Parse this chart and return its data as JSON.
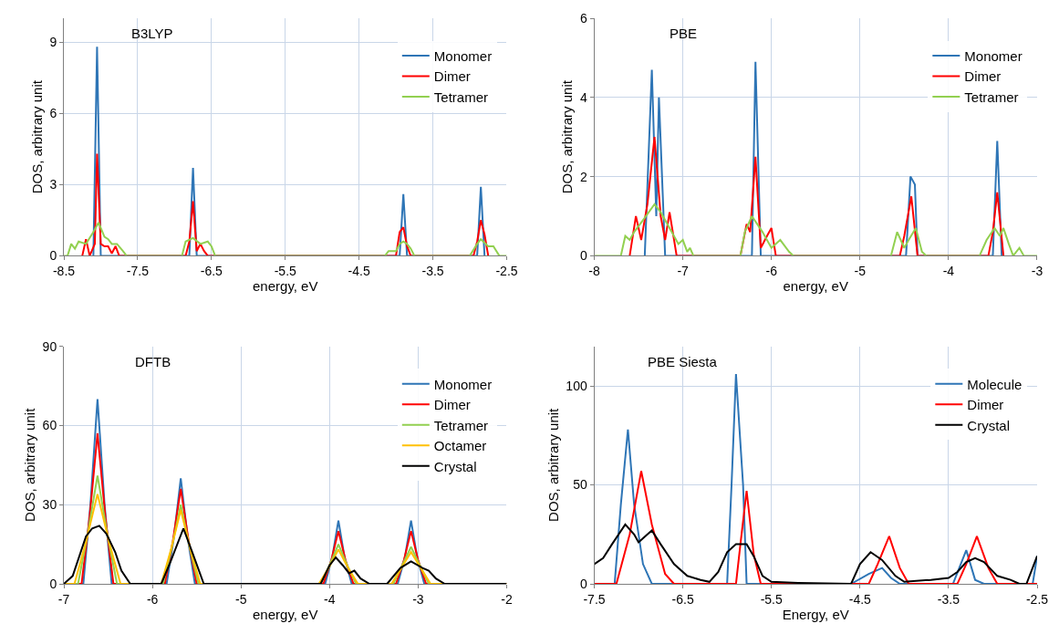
{
  "chart_data": [
    {
      "type": "line",
      "title": "B3LYP",
      "xlabel": "energy, eV",
      "ylabel": "DOS, arbitrary unit",
      "xlim": [
        -8.5,
        -2.5
      ],
      "xticks": [
        -8.5,
        -7.5,
        -6.5,
        -5.5,
        -4.5,
        -3.5,
        -2.5
      ],
      "ylim": [
        0,
        10
      ],
      "yticks": [
        0,
        3,
        6,
        9
      ],
      "grid": true,
      "legend": "top right",
      "series": [
        {
          "name": "Monomer",
          "color": "#2e75b6",
          "x": [
            -8.1,
            -8.05,
            -8.0,
            -6.8,
            -6.75,
            -6.7,
            -3.95,
            -3.9,
            -3.85,
            -2.9,
            -2.85,
            -2.8
          ],
          "values": [
            0,
            8.8,
            0,
            0,
            3.7,
            0,
            0,
            2.6,
            0,
            0,
            2.9,
            0
          ]
        },
        {
          "name": "Dimer",
          "color": "#ff0000",
          "x": [
            -8.25,
            -8.2,
            -8.15,
            -8.08,
            -8.05,
            -8.0,
            -7.95,
            -7.9,
            -7.85,
            -7.8,
            -7.75,
            -6.85,
            -6.8,
            -6.75,
            -6.7,
            -6.65,
            -6.6,
            -6.55,
            -4.0,
            -3.95,
            -3.9,
            -3.85,
            -3.8,
            -2.95,
            -2.9,
            -2.85,
            -2.8,
            -2.75
          ],
          "values": [
            0,
            0.7,
            0,
            0.5,
            4.3,
            0.5,
            0.4,
            0.4,
            0.1,
            0.4,
            0,
            0,
            0.6,
            2.3,
            0.2,
            0.5,
            0.2,
            0,
            0,
            1.0,
            1.2,
            0.4,
            0,
            0,
            0.6,
            1.5,
            0.9,
            0
          ]
        },
        {
          "name": "Tetramer",
          "color": "#92d050",
          "x": [
            -8.5,
            -8.45,
            -8.4,
            -8.35,
            -8.3,
            -8.2,
            -8.1,
            -8.03,
            -7.95,
            -7.9,
            -7.85,
            -7.78,
            -7.7,
            -7.65,
            -6.9,
            -6.85,
            -6.75,
            -6.65,
            -6.55,
            -6.5,
            -6.45,
            -4.15,
            -4.1,
            -4.0,
            -3.95,
            -3.9,
            -3.85,
            -3.8,
            -3.75,
            -3.0,
            -2.9,
            -2.85,
            -2.75,
            -2.68,
            -2.6,
            -2.5
          ],
          "values": [
            0,
            0,
            0.5,
            0.3,
            0.6,
            0.5,
            1.0,
            1.4,
            0.8,
            0.7,
            0.5,
            0.5,
            0.2,
            0,
            0,
            0.6,
            0.75,
            0.5,
            0.6,
            0.4,
            0,
            0,
            0.2,
            0.2,
            0.5,
            0.6,
            0.5,
            0.3,
            0,
            0,
            0.5,
            0.7,
            0.4,
            0.4,
            0,
            0
          ]
        }
      ]
    },
    {
      "type": "line",
      "title": "PBE",
      "xlabel": "energy, eV",
      "ylabel": "DOS, arbitrary unit",
      "xlim": [
        -8,
        -3
      ],
      "xticks": [
        -8,
        -7,
        -6,
        -5,
        -4,
        -3
      ],
      "ylim": [
        0,
        6
      ],
      "yticks": [
        0,
        2,
        4,
        6
      ],
      "grid": true,
      "legend": "top right",
      "series": [
        {
          "name": "Monomer",
          "color": "#2e75b6",
          "x": [
            -7.43,
            -7.35,
            -7.3,
            -7.27,
            -7.2,
            -6.22,
            -6.18,
            -6.12,
            -4.48,
            -4.43,
            -4.38,
            -4.35,
            -3.5,
            -3.45,
            -3.4
          ],
          "values": [
            0,
            4.7,
            1.0,
            4.0,
            0,
            0,
            4.9,
            0,
            0,
            2.0,
            1.8,
            0,
            0,
            2.9,
            0
          ]
        },
        {
          "name": "Dimer",
          "color": "#ff0000",
          "x": [
            -7.6,
            -7.53,
            -7.47,
            -7.4,
            -7.32,
            -7.25,
            -7.2,
            -7.15,
            -7.07,
            -6.35,
            -6.28,
            -6.24,
            -6.18,
            -6.12,
            -6.05,
            -6.0,
            -5.95,
            -4.55,
            -4.5,
            -4.42,
            -4.35,
            -3.55,
            -3.5,
            -3.45,
            -3.38
          ],
          "values": [
            0,
            1.0,
            0.4,
            1.3,
            3.0,
            1.0,
            0.4,
            1.1,
            0,
            0,
            0.8,
            0.6,
            2.5,
            0.2,
            0.5,
            0.7,
            0,
            0,
            0.5,
            1.5,
            0,
            0,
            0.6,
            1.6,
            0
          ]
        },
        {
          "name": "Tetramer",
          "color": "#92d050",
          "x": [
            -8,
            -7.7,
            -7.65,
            -7.6,
            -7.55,
            -7.45,
            -7.32,
            -7.25,
            -7.15,
            -7.05,
            -7.0,
            -6.95,
            -6.92,
            -6.88,
            -6.35,
            -6.3,
            -6.22,
            -6.1,
            -6.0,
            -5.9,
            -5.8,
            -5.75,
            -4.65,
            -4.58,
            -4.5,
            -4.45,
            -4.37,
            -4.3,
            -4.25,
            -3.65,
            -3.57,
            -3.48,
            -3.42,
            -3.38,
            -3.32,
            -3.27,
            -3.2,
            -3.15,
            -3
          ],
          "values": [
            0,
            0,
            0.5,
            0.4,
            0.6,
            0.9,
            1.3,
            1.1,
            0.7,
            0.3,
            0.4,
            0.1,
            0.2,
            0,
            0,
            0.6,
            1.0,
            0.6,
            0.2,
            0.4,
            0.1,
            0,
            0,
            0.6,
            0.2,
            0.4,
            0.7,
            0.1,
            0,
            0,
            0.4,
            0.7,
            0.5,
            0.7,
            0.3,
            0,
            0.2,
            0,
            0
          ]
        }
      ]
    },
    {
      "type": "line",
      "title": "DFTB",
      "xlabel": "energy, eV",
      "ylabel": "DOS, arbitrary unit",
      "xlim": [
        -7,
        -2
      ],
      "xticks": [
        -7,
        -6,
        -5,
        -4,
        -3,
        -2
      ],
      "ylim": [
        0,
        90
      ],
      "yticks": [
        0,
        30,
        60,
        90
      ],
      "grid": true,
      "legend": "top right",
      "series": [
        {
          "name": "Monomer",
          "color": "#2e75b6",
          "x": [
            -7,
            -6.78,
            -6.7,
            -6.62,
            -6.54,
            -6.46,
            -5.84,
            -5.76,
            -5.68,
            -5.6,
            -5.52,
            -4.05,
            -3.97,
            -3.9,
            -3.83,
            -3.75,
            -3.23,
            -3.15,
            -3.08,
            -3.01,
            -2.93,
            -2
          ],
          "values": [
            0,
            0,
            30,
            70,
            30,
            0,
            0,
            17,
            40,
            17,
            0,
            0,
            10,
            24,
            10,
            0,
            0,
            10,
            24,
            10,
            0,
            0
          ]
        },
        {
          "name": "Dimer",
          "color": "#ff0000",
          "x": [
            -7,
            -6.8,
            -6.71,
            -6.62,
            -6.53,
            -6.44,
            -5.86,
            -5.77,
            -5.68,
            -5.59,
            -5.5,
            -4.07,
            -3.98,
            -3.9,
            -3.82,
            -3.73,
            -3.25,
            -3.16,
            -3.08,
            -3.0,
            -2.91,
            -2
          ],
          "values": [
            0,
            0,
            25,
            57,
            25,
            0,
            0,
            16,
            36,
            16,
            0,
            0,
            9,
            20,
            9,
            0,
            0,
            9,
            20,
            9,
            0,
            0
          ]
        },
        {
          "name": "Tetramer",
          "color": "#92d050",
          "x": [
            -7,
            -6.84,
            -6.73,
            -6.62,
            -6.51,
            -6.4,
            -5.88,
            -5.78,
            -5.68,
            -5.58,
            -5.48,
            -4.1,
            -4.0,
            -3.9,
            -3.8,
            -3.7,
            -3.28,
            -3.18,
            -3.08,
            -2.98,
            -2.88,
            -2
          ],
          "values": [
            0,
            0,
            19,
            41,
            19,
            0,
            0,
            14,
            30,
            14,
            0,
            0,
            7,
            15,
            7,
            0,
            0,
            7,
            14,
            7,
            0,
            0
          ]
        },
        {
          "name": "Octamer",
          "color": "#ffc000",
          "x": [
            -7,
            -6.88,
            -6.75,
            -6.62,
            -6.49,
            -6.36,
            -5.9,
            -5.79,
            -5.68,
            -5.57,
            -5.46,
            -4.12,
            -4.01,
            -3.9,
            -3.79,
            -3.68,
            -3.3,
            -3.19,
            -3.08,
            -2.97,
            -2.86,
            -2
          ],
          "values": [
            0,
            0,
            16,
            34,
            16,
            0,
            0,
            13,
            28,
            13,
            0,
            0,
            6,
            13,
            6,
            0,
            0,
            6,
            12,
            6,
            0,
            0
          ]
        },
        {
          "name": "Crystal",
          "color": "#000000",
          "x": [
            -7,
            -6.9,
            -6.75,
            -6.68,
            -6.6,
            -6.52,
            -6.42,
            -6.35,
            -6.25,
            -5.9,
            -5.8,
            -5.65,
            -5.55,
            -5.42,
            -4.1,
            -4.0,
            -3.93,
            -3.85,
            -3.78,
            -3.72,
            -3.65,
            -3.55,
            -3.35,
            -3.2,
            -3.08,
            -2.95,
            -2.88,
            -2.8,
            -2.7,
            -2
          ],
          "values": [
            0,
            3,
            18,
            21,
            22,
            19,
            12,
            5,
            0,
            0,
            8,
            21,
            12,
            0,
            0,
            7,
            10,
            7,
            4,
            5,
            2,
            0,
            0,
            6,
            8.5,
            6,
            5,
            2,
            0,
            0
          ]
        }
      ]
    },
    {
      "type": "line",
      "title": "PBE Siesta",
      "xlabel": "Energy, eV",
      "ylabel": "DOS, arbitrary unit",
      "xlim": [
        -7.5,
        -2.5
      ],
      "xticks": [
        -7.5,
        -6.5,
        -5.5,
        -4.5,
        -3.5,
        -2.5
      ],
      "ylim": [
        0,
        120
      ],
      "yticks": [
        0,
        50,
        100
      ],
      "grid": true,
      "legend": "top right",
      "series": [
        {
          "name": "Molecule",
          "color": "#2e75b6",
          "x": [
            -7.5,
            -7.27,
            -7.2,
            -7.12,
            -7.05,
            -6.95,
            -6.85,
            -6.0,
            -5.95,
            -5.9,
            -5.82,
            -5.78,
            -4.6,
            -4.4,
            -4.25,
            -4.15,
            -4.05,
            -3.45,
            -3.3,
            -3.2,
            -3.1,
            -2.55,
            -2.5
          ],
          "values": [
            0,
            0,
            40,
            78,
            40,
            10,
            0,
            0,
            50,
            106,
            50,
            0,
            0,
            5,
            8,
            3,
            0,
            0,
            17,
            2,
            0,
            0,
            14
          ]
        },
        {
          "name": "Dimer",
          "color": "#ff0000",
          "x": [
            -7.5,
            -7.25,
            -7.1,
            -6.97,
            -6.85,
            -6.7,
            -6.6,
            -5.9,
            -5.85,
            -5.78,
            -5.7,
            -5.62,
            -4.4,
            -4.3,
            -4.17,
            -4.05,
            -3.95,
            -3.4,
            -3.3,
            -3.18,
            -3.05,
            -2.95,
            -2.5
          ],
          "values": [
            0,
            0,
            25,
            57,
            30,
            5,
            0,
            0,
            20,
            47,
            15,
            0,
            0,
            10,
            24,
            8,
            0,
            0,
            10,
            24,
            8,
            0,
            0
          ]
        },
        {
          "name": "Crystal",
          "color": "#000000",
          "x": [
            -7.5,
            -7.4,
            -7.3,
            -7.15,
            -7.05,
            -7.0,
            -6.9,
            -6.85,
            -6.75,
            -6.6,
            -6.45,
            -6.3,
            -6.2,
            -6.1,
            -6.0,
            -5.9,
            -5.78,
            -5.7,
            -5.6,
            -5.5,
            -5.2,
            -4.6,
            -4.5,
            -4.38,
            -4.25,
            -4.1,
            -4.0,
            -3.7,
            -3.5,
            -3.4,
            -3.3,
            -3.2,
            -3.1,
            -2.95,
            -2.8,
            -2.7,
            -2.62,
            -2.5
          ],
          "values": [
            10,
            13,
            20,
            30,
            25,
            21,
            25,
            27,
            20,
            10,
            4,
            2,
            1,
            6,
            16,
            20,
            20,
            14,
            4,
            1,
            0.5,
            0,
            10,
            16,
            12,
            4,
            1,
            2,
            3,
            6,
            11,
            13,
            11,
            4,
            2,
            0,
            0,
            14
          ]
        }
      ]
    }
  ]
}
